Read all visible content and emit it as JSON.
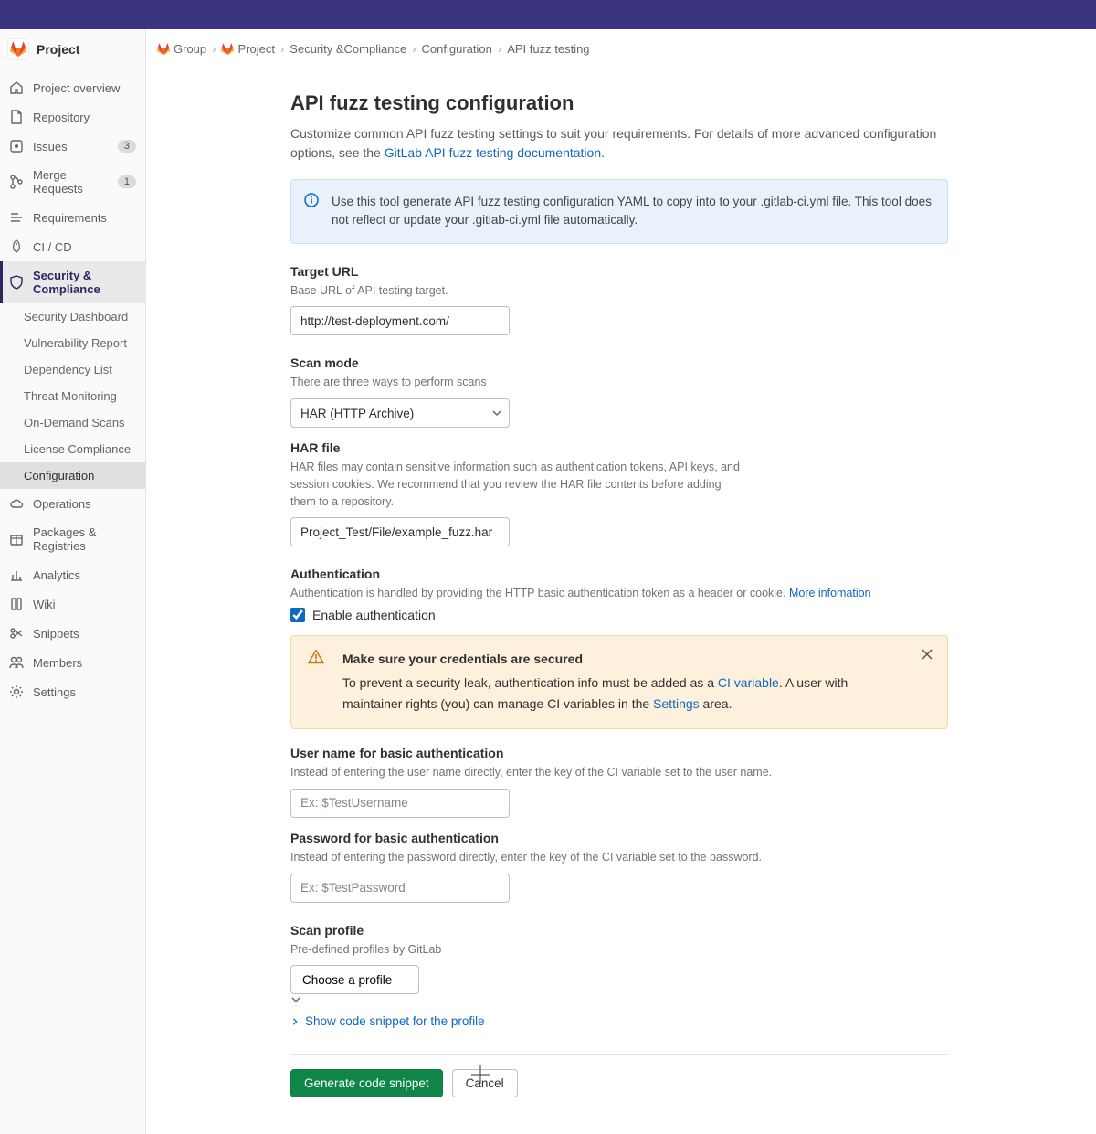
{
  "colors": {
    "topbar_bg": "#3b3480",
    "sidebar_bg": "#fafafa",
    "active_bg": "#e9e9e9",
    "active_accent": "#292961",
    "info_bg": "#e9f2fb",
    "info_border": "#cbe0f3",
    "warn_bg": "#fdf1dd",
    "warn_border": "#f0d8a8",
    "link": "#1068bf",
    "primary_btn": "#108548"
  },
  "project": {
    "name": "Project"
  },
  "sidebar": {
    "items": [
      {
        "label": "Project overview",
        "icon": "home"
      },
      {
        "label": "Repository",
        "icon": "doc"
      },
      {
        "label": "Issues",
        "icon": "issues",
        "badge": "3"
      },
      {
        "label": "Merge Requests",
        "icon": "merge",
        "badge": "1"
      },
      {
        "label": "Requirements",
        "icon": "requirements"
      },
      {
        "label": "CI / CD",
        "icon": "rocket"
      },
      {
        "label": "Security & Compliance",
        "icon": "shield",
        "active": true
      },
      {
        "label": "Operations",
        "icon": "cloud"
      },
      {
        "label": "Packages & Registries",
        "icon": "package"
      },
      {
        "label": "Analytics",
        "icon": "chart"
      },
      {
        "label": "Wiki",
        "icon": "book"
      },
      {
        "label": "Snippets",
        "icon": "snippets"
      },
      {
        "label": "Members",
        "icon": "members"
      },
      {
        "label": "Settings",
        "icon": "gear"
      }
    ],
    "sub": [
      {
        "label": "Security Dashboard"
      },
      {
        "label": "Vulnerability Report"
      },
      {
        "label": "Dependency List"
      },
      {
        "label": "Threat Monitoring"
      },
      {
        "label": "On-Demand Scans"
      },
      {
        "label": "License Compliance"
      },
      {
        "label": "Configuration",
        "active": true
      }
    ]
  },
  "breadcrumbs": {
    "items": [
      {
        "label": "Group",
        "logo": true
      },
      {
        "label": "Project",
        "logo": true
      },
      {
        "label": "Security &Compliance"
      },
      {
        "label": "Configuration"
      },
      {
        "label": "API fuzz testing"
      }
    ]
  },
  "page": {
    "title": "API fuzz testing configuration",
    "subtitle_pre": "Customize common API fuzz testing settings to suit your requirements. For details of more advanced configuration options, see the ",
    "subtitle_link": "GitLab API fuzz testing documentation",
    "subtitle_post": ".",
    "info_banner": "Use this tool generate API fuzz testing configuration YAML to copy into to your .gitlab-ci.yml file. This tool does not reflect or update your .gitlab-ci.yml file automatically."
  },
  "form": {
    "target_url": {
      "label": "Target URL",
      "hint": "Base URL of API testing target.",
      "value": "http://test-deployment.com/"
    },
    "scan_mode": {
      "label": "Scan mode",
      "hint": "There are three ways to perform scans",
      "value": "HAR (HTTP Archive)"
    },
    "har_file": {
      "label": "HAR file",
      "hint": "HAR files may contain sensitive information such as authentication tokens, API keys, and session cookies. We recommend that you review the HAR file contents before adding them to a repository.",
      "value": "Project_Test/File/example_fuzz.har"
    },
    "auth": {
      "label": "Authentication",
      "hint_pre": "Authentication is handled by providing the HTTP basic authentication token as a header or cookie. ",
      "hint_link": "More infomation",
      "checkbox_label": "Enable authentication",
      "checked": true
    },
    "warn": {
      "title": "Make sure your credentials are secured",
      "body_pre": "To prevent a security leak, authentication info must be added as a ",
      "body_link1": "CI variable",
      "body_mid": ". A user with maintainer rights (you) can manage CI variables in the ",
      "body_link2": "Settings",
      "body_post": " area."
    },
    "username": {
      "label": "User name for basic authentication",
      "hint": "Instead of entering the user name directly, enter the key of the CI variable set to the user name.",
      "placeholder": "Ex: $TestUsername"
    },
    "password": {
      "label": "Password for basic authentication",
      "hint": "Instead of entering the password directly, enter the key of the CI variable set to the password.",
      "placeholder": "Ex: $TestPassword"
    },
    "profile": {
      "label": "Scan profile",
      "hint": "Pre-defined profiles by GitLab",
      "value": "Choose a profile",
      "expand": "Show code snippet for the profile"
    },
    "buttons": {
      "generate": "Generate code snippet",
      "cancel": "Cancel"
    }
  }
}
